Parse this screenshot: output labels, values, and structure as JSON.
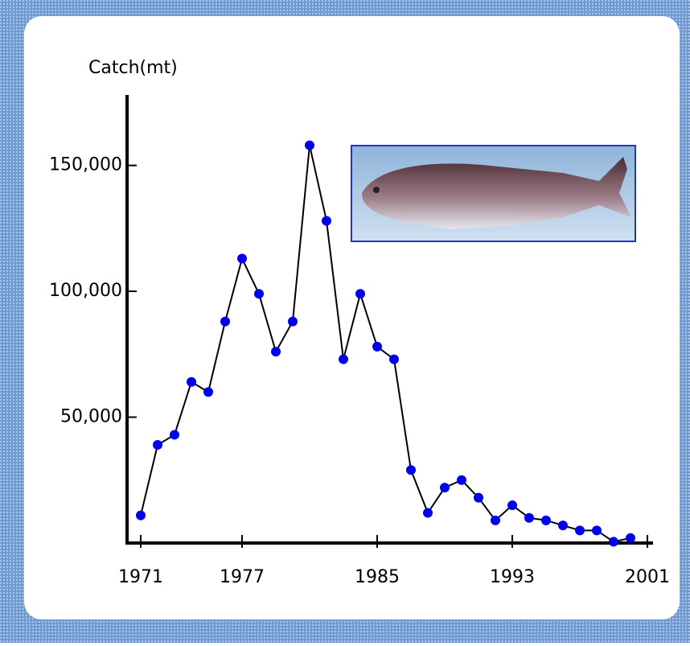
{
  "chart_data": {
    "type": "line",
    "y_label": "Catch(mt)",
    "categories": [
      "1971",
      null,
      null,
      null,
      null,
      null,
      "1977",
      null,
      null,
      null,
      null,
      null,
      null,
      null,
      "1985",
      null,
      null,
      null,
      null,
      null,
      null,
      null,
      "1993",
      null,
      null,
      null,
      null,
      null,
      null,
      null,
      "2001"
    ],
    "values": [
      11000,
      39000,
      43000,
      64000,
      60000,
      88000,
      113000,
      99000,
      76000,
      88000,
      158000,
      128000,
      73000,
      99000,
      78000,
      73000,
      29000,
      12000,
      22000,
      25000,
      18000,
      9000,
      15000,
      10000,
      9000,
      7000,
      5000,
      5000,
      500,
      2000,
      null
    ],
    "color": "#0000ee",
    "ylim": [
      0,
      178000
    ],
    "yticks": [
      {
        "value": 50000,
        "label": "50,000"
      },
      {
        "value": 100000,
        "label": "100,000"
      },
      {
        "value": 150000,
        "label": "150,000"
      }
    ]
  }
}
